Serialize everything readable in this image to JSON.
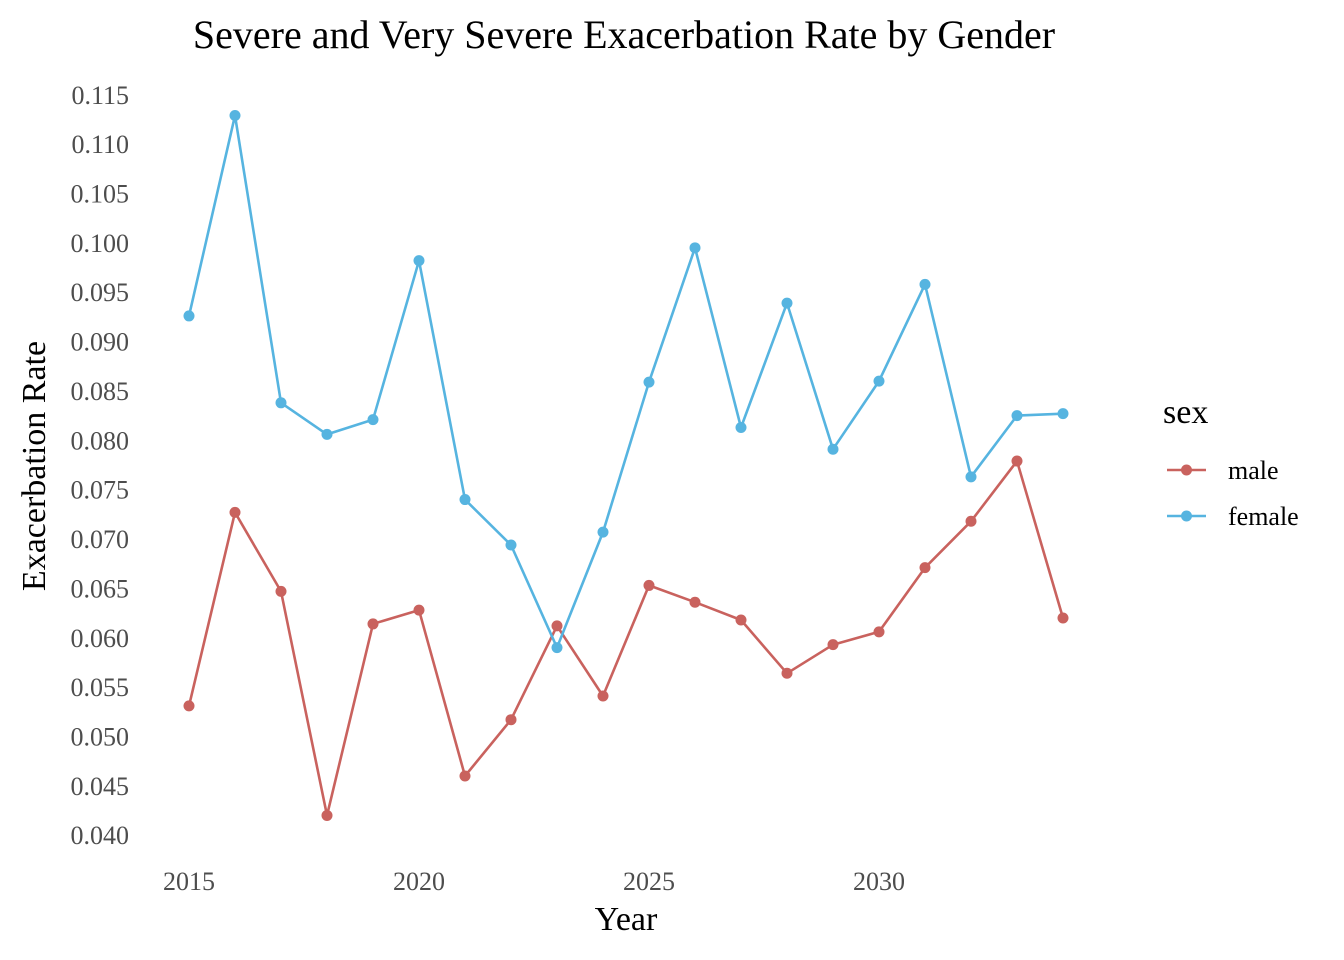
{
  "chart_data": {
    "type": "line",
    "title": "Severe and Very Severe Exacerbation Rate by Gender",
    "xlabel": "Year",
    "ylabel": "Exacerbation Rate",
    "x": [
      2015,
      2016,
      2017,
      2018,
      2019,
      2020,
      2021,
      2022,
      2023,
      2024,
      2025,
      2026,
      2027,
      2028,
      2029,
      2030,
      2031,
      2032,
      2033,
      2034
    ],
    "xlim": [
      2014.5,
      2034.5
    ],
    "ylim": [
      0.0385,
      0.1165
    ],
    "x_ticks": [
      "2015",
      "2020",
      "2025",
      "2030"
    ],
    "y_ticks": [
      "0.040",
      "0.045",
      "0.050",
      "0.055",
      "0.060",
      "0.065",
      "0.070",
      "0.075",
      "0.080",
      "0.085",
      "0.090",
      "0.095",
      "0.100",
      "0.105",
      "0.110",
      "0.115"
    ],
    "grid": false,
    "legend": {
      "title": "sex",
      "placement": "right"
    },
    "series": [
      {
        "name": "male",
        "color": "#c9625e",
        "values": [
          0.0531,
          0.0727,
          0.0647,
          0.042,
          0.0614,
          0.0628,
          0.046,
          0.0517,
          0.0612,
          0.0541,
          0.0653,
          0.0636,
          0.0618,
          0.0564,
          0.0593,
          0.0606,
          0.0671,
          0.0718,
          0.0779,
          0.062
        ]
      },
      {
        "name": "female",
        "color": "#56b4e0",
        "values": [
          0.0926,
          0.1129,
          0.0838,
          0.0806,
          0.0821,
          0.0982,
          0.074,
          0.0694,
          0.059,
          0.0707,
          0.0859,
          0.0995,
          0.0813,
          0.0939,
          0.0791,
          0.086,
          0.0958,
          0.0763,
          0.0825,
          0.0827
        ]
      }
    ]
  }
}
